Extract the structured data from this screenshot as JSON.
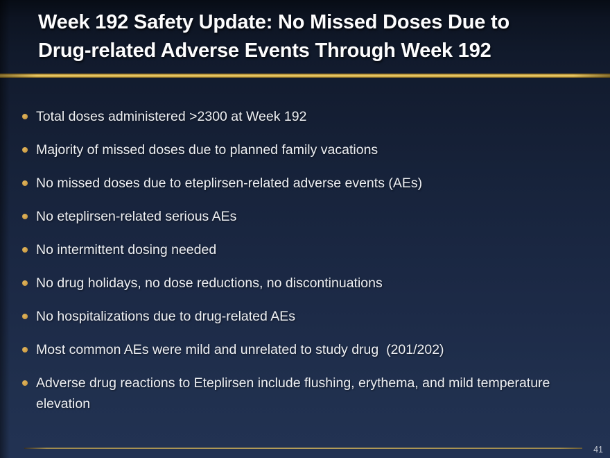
{
  "slide": {
    "title_line1": "Week 192 Safety Update: No Missed Doses Due to",
    "title_line2": "Drug-related Adverse Events Through Week 192",
    "page_number": "41",
    "colors": {
      "background_top": "#070c15",
      "background_bottom": "#223253",
      "title_text": "#fdfdfe",
      "body_text": "#eef0f4",
      "accent_gold_rule": "#e7c35c",
      "bullet_gold": "#cf9e44",
      "footer_rule": "#b59e59",
      "page_number_text": "#c7cbd4"
    }
  },
  "bullets": [
    "Total doses administered >2300 at Week 192",
    "Majority of missed doses due to planned family vacations",
    "No missed doses due to eteplirsen-related adverse events (AEs)",
    "No eteplirsen-related serious AEs",
    "No intermittent dosing needed",
    "No drug holidays, no dose reductions, no discontinuations",
    "No hospitalizations due to drug-related AEs",
    "Most common AEs were mild and unrelated to study drug  (201/202)",
    "Adverse drug reactions to Eteplirsen include flushing, erythema, and mild temperature elevation"
  ]
}
